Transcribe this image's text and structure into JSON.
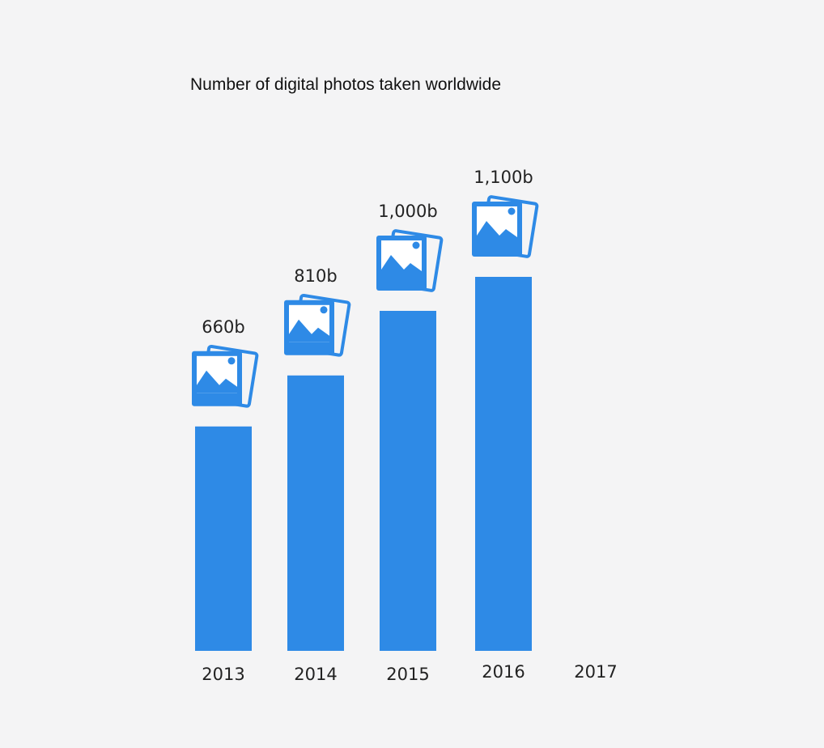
{
  "chart_data": {
    "type": "bar",
    "title": "Number of digital photos taken worldwide",
    "xlabel": "",
    "ylabel": "",
    "categories": [
      "2013",
      "2014",
      "2015",
      "2016",
      "2017"
    ],
    "values": [
      660,
      810,
      1000,
      1100,
      null
    ],
    "value_labels": [
      "660b",
      "810b",
      "1,000b",
      "1,100b",
      ""
    ],
    "unit": "b",
    "ylim": [
      0,
      1100
    ],
    "grid": false,
    "legend": "none",
    "bar_color": "#2e8ae6",
    "marker_icon": "photo-stack-icon"
  }
}
